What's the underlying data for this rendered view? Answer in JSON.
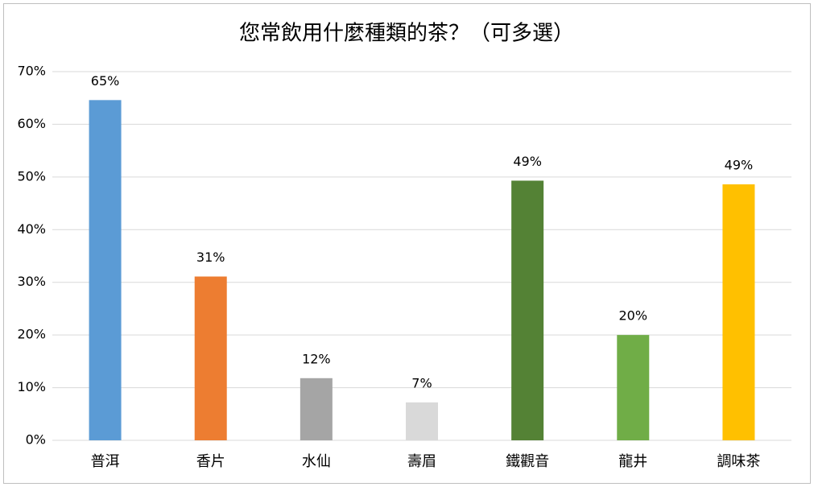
{
  "chart_data": {
    "type": "bar",
    "title": "您常飲用什麼種類的茶？（可多選）",
    "categories": [
      "普洱",
      "香片",
      "水仙",
      "壽眉",
      "鐵觀音",
      "龍井",
      "調味茶"
    ],
    "values": [
      64.6,
      31.1,
      11.8,
      7.2,
      49.3,
      20.0,
      48.6
    ],
    "value_labels": [
      "65%",
      "31%",
      "12%",
      "7%",
      "49%",
      "20%",
      "49%"
    ],
    "colors": [
      "#5b9bd5",
      "#ed7d31",
      "#a5a5a5",
      "#d9d9d9",
      "#548235",
      "#70ad47",
      "#ffc000"
    ],
    "ylim": [
      0,
      70
    ],
    "yticks": [
      {
        "value": 0,
        "label": "0%"
      },
      {
        "value": 10,
        "label": "10%"
      },
      {
        "value": 20,
        "label": "20%"
      },
      {
        "value": 30,
        "label": "30%"
      },
      {
        "value": 40,
        "label": "40%"
      },
      {
        "value": 50,
        "label": "50%"
      },
      {
        "value": 60,
        "label": "60%"
      },
      {
        "value": 70,
        "label": "70%"
      }
    ],
    "grid": true
  }
}
